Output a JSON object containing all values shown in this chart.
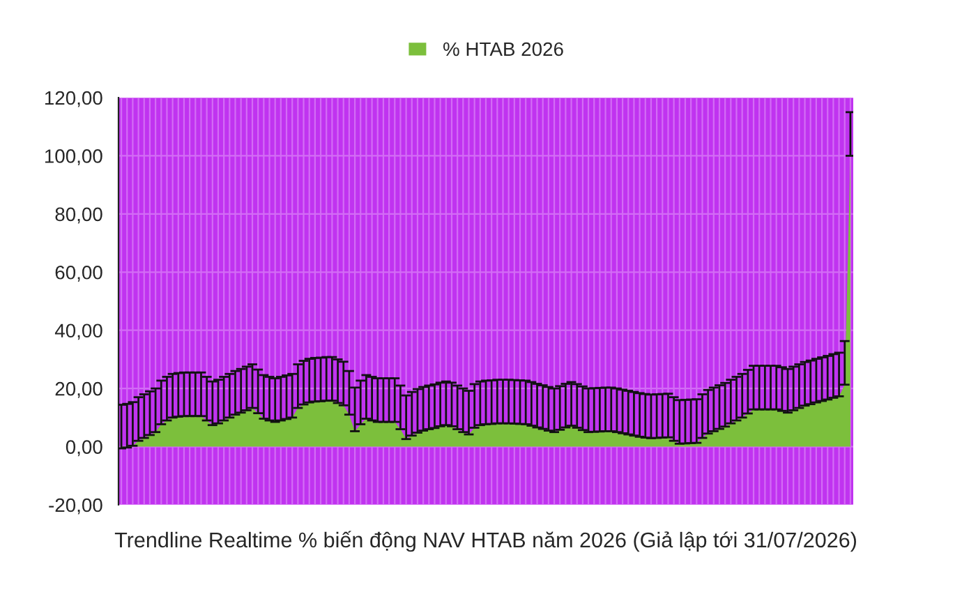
{
  "chart_data": {
    "type": "area",
    "xlabel": "Trendline Realtime % biến động NAV HTAB năm 2026 (Giả lập tới 31/07/2026)",
    "categories": [
      null,
      null,
      null,
      null,
      null,
      null,
      null,
      null,
      null,
      null,
      null,
      null,
      null,
      null,
      null,
      null,
      null,
      null,
      null,
      null,
      null,
      null,
      null,
      null,
      null,
      null,
      null,
      null,
      null,
      null,
      null,
      null,
      null,
      null,
      null,
      null,
      null,
      null,
      null,
      null,
      null,
      null,
      null,
      null,
      null,
      null,
      null,
      null,
      null,
      null,
      null,
      null,
      null,
      null,
      null,
      null,
      null,
      null,
      null,
      null,
      null,
      null,
      null,
      null,
      null,
      null,
      null,
      null,
      null,
      null,
      null,
      null,
      null,
      null,
      null,
      null,
      null,
      null,
      null,
      null,
      null,
      null,
      null,
      null,
      null,
      null,
      null,
      null,
      null,
      null,
      null,
      null,
      null,
      null,
      null,
      null,
      null,
      null,
      null,
      null,
      null,
      null,
      null,
      null,
      null,
      null,
      null,
      null,
      null,
      null,
      null,
      null,
      null,
      null,
      null,
      null,
      null,
      null,
      null,
      null,
      null,
      null,
      null,
      null,
      null,
      null,
      null,
      null,
      null
    ],
    "series": [
      {
        "name": "% HTAB 2026",
        "color": "#7cbf3c",
        "values": [
          -0.6,
          -0.3,
          0.3,
          2,
          3,
          4,
          5,
          7.7,
          9,
          10,
          10.3,
          10.5,
          10.5,
          10.5,
          10.5,
          9,
          7.4,
          8,
          9,
          10,
          11,
          11.7,
          12.5,
          13.3,
          11.5,
          9.6,
          9,
          8.5,
          9,
          9.5,
          10,
          13.3,
          14.5,
          15.2,
          15.5,
          15.6,
          15.8,
          15.8,
          15,
          14.2,
          11,
          5.3,
          7.7,
          9.6,
          9,
          8.5,
          8.5,
          8.5,
          8.5,
          6,
          2.6,
          3.8,
          4.8,
          5.5,
          6,
          6.4,
          7,
          7.4,
          7,
          6,
          5,
          4.2,
          6.5,
          7.4,
          7.7,
          7.8,
          8,
          8,
          8,
          7.9,
          7.8,
          7.7,
          7.2,
          6.6,
          6.1,
          5.5,
          5,
          5.8,
          6.6,
          7.2,
          6.5,
          5.7,
          5,
          5.1,
          5.2,
          5.3,
          5.3,
          5,
          4.6,
          4.2,
          3.8,
          3.4,
          3.1,
          2.9,
          3,
          3.1,
          3.2,
          2,
          1,
          1.1,
          1.2,
          1.3,
          3,
          4.5,
          5.3,
          6.1,
          6.9,
          8,
          9,
          10,
          11.4,
          12.8,
          12.8,
          12.8,
          12.8,
          12.8,
          12.3,
          11.7,
          12.5,
          13.3,
          14.1,
          14.6,
          15.2,
          15.7,
          16.2,
          16.8,
          17.3,
          21.3,
          100
        ],
        "errors": [
          [
            -0.6,
            14.4
          ],
          [
            -0.3,
            14.7
          ],
          [
            0.3,
            15.3
          ],
          [
            2,
            17
          ],
          [
            3,
            18
          ],
          [
            4,
            19
          ],
          [
            5,
            20
          ],
          [
            7.7,
            22.7
          ],
          [
            9,
            24
          ],
          [
            10,
            25
          ],
          [
            10.3,
            25.3
          ],
          [
            10.5,
            25.5
          ],
          [
            10.5,
            25.5
          ],
          [
            10.5,
            25.5
          ],
          [
            10.5,
            25.5
          ],
          [
            9,
            24
          ],
          [
            7.4,
            22.4
          ],
          [
            8,
            23
          ],
          [
            9,
            24
          ],
          [
            10,
            25
          ],
          [
            11,
            26
          ],
          [
            11.7,
            26.7
          ],
          [
            12.5,
            27.5
          ],
          [
            13.3,
            28.3
          ],
          [
            11.5,
            26.5
          ],
          [
            9.6,
            24.6
          ],
          [
            9,
            24
          ],
          [
            8.5,
            23.5
          ],
          [
            9,
            24
          ],
          [
            9.5,
            24.5
          ],
          [
            10,
            25
          ],
          [
            13.3,
            28.3
          ],
          [
            14.5,
            29.5
          ],
          [
            15.2,
            30.2
          ],
          [
            15.5,
            30.5
          ],
          [
            15.6,
            30.6
          ],
          [
            15.8,
            30.8
          ],
          [
            15.8,
            30.8
          ],
          [
            15,
            30
          ],
          [
            14.2,
            29.2
          ],
          [
            11,
            26
          ],
          [
            5.3,
            20.3
          ],
          [
            7.7,
            22.7
          ],
          [
            9.6,
            24.6
          ],
          [
            9,
            24
          ],
          [
            8.5,
            23.5
          ],
          [
            8.5,
            23.5
          ],
          [
            8.5,
            23.5
          ],
          [
            8.5,
            23.5
          ],
          [
            6,
            21
          ],
          [
            2.6,
            17.6
          ],
          [
            3.8,
            18.8
          ],
          [
            4.8,
            19.8
          ],
          [
            5.5,
            20.5
          ],
          [
            6,
            21
          ],
          [
            6.4,
            21.4
          ],
          [
            7,
            22
          ],
          [
            7.4,
            22.4
          ],
          [
            7,
            22
          ],
          [
            6,
            21
          ],
          [
            5,
            20
          ],
          [
            4.2,
            19.2
          ],
          [
            6.5,
            21.5
          ],
          [
            7.4,
            22.4
          ],
          [
            7.7,
            22.7
          ],
          [
            7.8,
            22.8
          ],
          [
            8,
            23
          ],
          [
            8,
            23
          ],
          [
            8,
            23
          ],
          [
            7.9,
            22.9
          ],
          [
            7.8,
            22.8
          ],
          [
            7.7,
            22.7
          ],
          [
            7.2,
            22.2
          ],
          [
            6.6,
            21.6
          ],
          [
            6.1,
            21.1
          ],
          [
            5.5,
            20.5
          ],
          [
            5,
            20
          ],
          [
            5.8,
            20.8
          ],
          [
            6.6,
            21.6
          ],
          [
            7.2,
            22.2
          ],
          [
            6.5,
            21.5
          ],
          [
            5.7,
            20.7
          ],
          [
            5,
            20
          ],
          [
            5.1,
            20.1
          ],
          [
            5.2,
            20.2
          ],
          [
            5.3,
            20.3
          ],
          [
            5.3,
            20.3
          ],
          [
            5,
            20
          ],
          [
            4.6,
            19.6
          ],
          [
            4.2,
            19.2
          ],
          [
            3.8,
            18.8
          ],
          [
            3.4,
            18.4
          ],
          [
            3.1,
            18.1
          ],
          [
            2.9,
            17.9
          ],
          [
            3,
            18
          ],
          [
            3.1,
            18.1
          ],
          [
            3.2,
            18.2
          ],
          [
            2,
            17
          ],
          [
            1,
            16
          ],
          [
            1.1,
            16.1
          ],
          [
            1.2,
            16.2
          ],
          [
            1.3,
            16.3
          ],
          [
            3,
            18
          ],
          [
            4.5,
            19.5
          ],
          [
            5.3,
            20.3
          ],
          [
            6.1,
            21.1
          ],
          [
            6.9,
            21.9
          ],
          [
            8,
            23
          ],
          [
            9,
            24
          ],
          [
            10,
            25
          ],
          [
            11.4,
            26.4
          ],
          [
            12.8,
            27.8
          ],
          [
            12.8,
            27.8
          ],
          [
            12.8,
            27.8
          ],
          [
            12.8,
            27.8
          ],
          [
            12.8,
            27.8
          ],
          [
            12.3,
            27.3
          ],
          [
            11.7,
            26.7
          ],
          [
            12.5,
            27.5
          ],
          [
            13.3,
            28.3
          ],
          [
            14.1,
            29.1
          ],
          [
            14.6,
            29.6
          ],
          [
            15.2,
            30.2
          ],
          [
            15.7,
            30.7
          ],
          [
            16.2,
            31.2
          ],
          [
            16.8,
            31.8
          ],
          [
            17.3,
            32.3
          ],
          [
            21.3,
            36.3
          ],
          [
            100,
            115
          ]
        ]
      }
    ],
    "ylim": [
      -20,
      120
    ],
    "yticks": [
      {
        "value": -20,
        "label": "-20,00"
      },
      {
        "value": 0,
        "label": "0,00"
      },
      {
        "value": 20,
        "label": "20,00"
      },
      {
        "value": 40,
        "label": "40,00"
      },
      {
        "value": 60,
        "label": "60,00"
      },
      {
        "value": 80,
        "label": "80,00"
      },
      {
        "value": 100,
        "label": "100,00"
      },
      {
        "value": 120,
        "label": "120,00"
      }
    ],
    "grid": true,
    "legend": "top",
    "tick_labels": "y"
  }
}
